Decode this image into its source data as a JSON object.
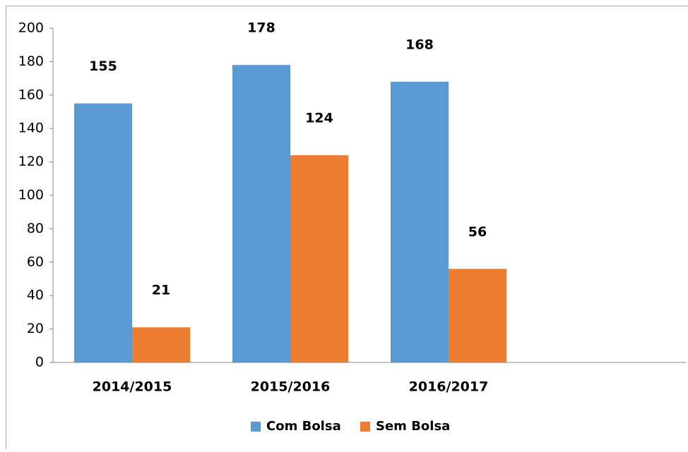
{
  "chart_data": {
    "type": "bar",
    "categories": [
      "2014/2015",
      "2015/2016",
      "2016/2017",
      null
    ],
    "series": [
      {
        "name": "Com Bolsa",
        "color": "#5b9bd5",
        "values": [
          155,
          178,
          168,
          null
        ]
      },
      {
        "name": "Sem Bolsa",
        "color": "#ed7d31",
        "values": [
          21,
          124,
          56,
          null
        ]
      }
    ],
    "ylim": [
      0,
      200
    ],
    "yticks": [
      0,
      20,
      40,
      60,
      80,
      100,
      120,
      140,
      160,
      180,
      200
    ],
    "grid": false,
    "legend": "bottom"
  }
}
